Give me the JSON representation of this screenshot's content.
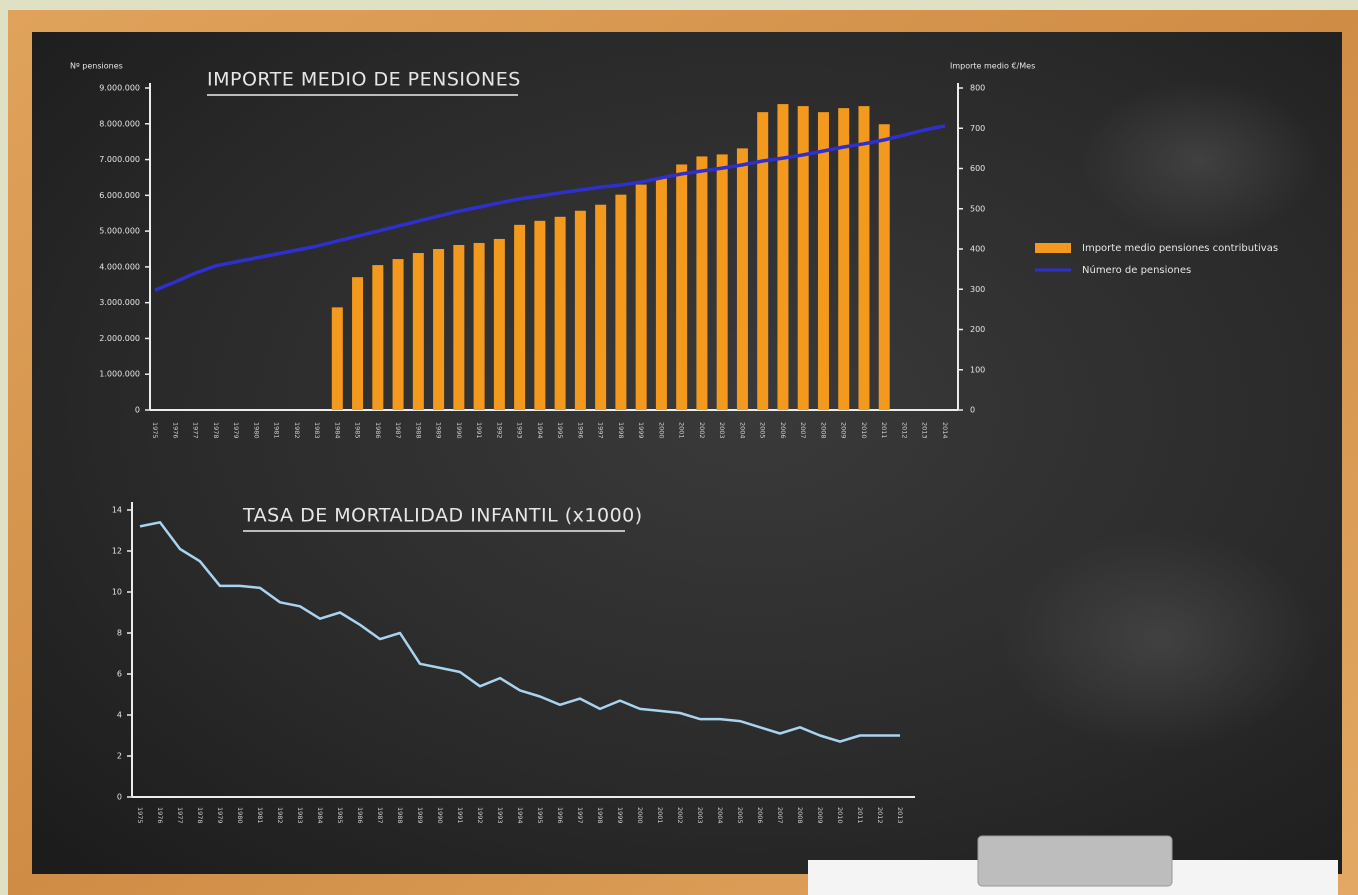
{
  "chart_data": [
    {
      "type": "combo",
      "title": "IMPORTE MEDIO DE PENSIONES",
      "ylabel": "Nº pensiones",
      "y2label": "Importe medio €/Mes",
      "categories": [
        "1975",
        "1976",
        "1977",
        "1978",
        "1979",
        "1980",
        "1981",
        "1982",
        "1983",
        "1984",
        "1985",
        "1986",
        "1987",
        "1988",
        "1989",
        "1990",
        "1991",
        "1992",
        "1993",
        "1994",
        "1995",
        "1996",
        "1997",
        "1998",
        "1999",
        "2000",
        "2001",
        "2002",
        "2003",
        "2004",
        "2005",
        "2006",
        "2007",
        "2008",
        "2009",
        "2010",
        "2011",
        "2012",
        "2013",
        "2014"
      ],
      "series": [
        {
          "name": "Importe medio pensiones contributivas",
          "color": "#f39a1e",
          "axis": "y2",
          "values": [
            null,
            null,
            null,
            null,
            null,
            null,
            null,
            null,
            null,
            255,
            330,
            360,
            375,
            390,
            400,
            410,
            415,
            425,
            460,
            470,
            480,
            495,
            510,
            535,
            560,
            575,
            610,
            630,
            635,
            650,
            740,
            760,
            755,
            740,
            750,
            755,
            710,
            null,
            null,
            null
          ]
        },
        {
          "name": "Número de pensiones",
          "color": "#2f2fd0",
          "values": [
            3350000,
            3580000,
            3830000,
            4030000,
            4140000,
            4250000,
            4360000,
            4470000,
            4580000,
            4720000,
            4860000,
            5000000,
            5140000,
            5280000,
            5420000,
            5560000,
            5670000,
            5790000,
            5900000,
            5980000,
            6070000,
            6150000,
            6230000,
            6290000,
            6370000,
            6490000,
            6600000,
            6680000,
            6760000,
            6850000,
            6960000,
            7040000,
            7130000,
            7240000,
            7350000,
            7440000,
            7550000,
            7690000,
            7830000,
            7940000
          ]
        }
      ],
      "ylim": [
        0,
        9000000
      ],
      "yticks": [
        0,
        {
          "value": 1000000,
          "label": "1.000.000"
        },
        {
          "value": 2000000,
          "label": "2.000.000"
        },
        {
          "value": 3000000,
          "label": "3.000.000"
        },
        {
          "value": 4000000,
          "label": "4.000.000"
        },
        {
          "value": 5000000,
          "label": "5.000.000"
        },
        {
          "value": 6000000,
          "label": "6.000.000"
        },
        {
          "value": 7000000,
          "label": "7.000.000"
        },
        {
          "value": 8000000,
          "label": "8.000.000"
        },
        {
          "value": 9000000,
          "label": "9.000.000"
        }
      ],
      "y2lim": [
        0,
        800
      ],
      "y2ticks": [
        0,
        100,
        200,
        300,
        400,
        500,
        600,
        700,
        800
      ],
      "legend": "right"
    },
    {
      "type": "line",
      "title": "TASA DE MORTALIDAD INFANTIL (x1000)",
      "categories": [
        "1975",
        "1976",
        "1977",
        "1978",
        "1979",
        "1980",
        "1981",
        "1982",
        "1983",
        "1984",
        "1985",
        "1986",
        "1987",
        "1988",
        "1989",
        "1990",
        "1991",
        "1992",
        "1993",
        "1994",
        "1995",
        "1996",
        "1997",
        "1998",
        "1999",
        "2000",
        "2001",
        "2002",
        "2003",
        "2004",
        "2005",
        "2006",
        "2007",
        "2008",
        "2009",
        "2010",
        "2011",
        "2012",
        "2013"
      ],
      "series": [
        {
          "color": "#a9d3ef",
          "values": [
            13.2,
            13.4,
            12.1,
            11.5,
            10.3,
            10.3,
            10.2,
            9.5,
            9.3,
            8.7,
            9.0,
            8.4,
            7.7,
            8.0,
            6.5,
            6.3,
            6.1,
            5.4,
            5.8,
            5.2,
            4.9,
            4.5,
            4.8,
            4.3,
            4.7,
            4.3,
            4.2,
            4.1,
            3.8,
            3.8,
            3.7,
            3.4,
            3.1,
            3.4,
            3.0,
            2.7,
            3.0,
            3.0,
            3.0
          ]
        }
      ],
      "ylim": [
        0,
        14
      ],
      "yticks": [
        0,
        2,
        4,
        6,
        8,
        10,
        12,
        14
      ]
    }
  ]
}
